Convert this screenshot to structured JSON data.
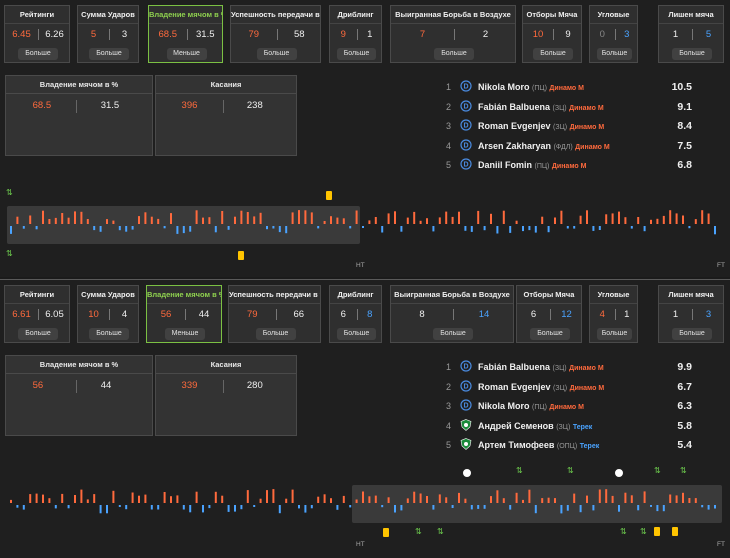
{
  "match1": {
    "stats": [
      {
        "title": "Рейтинги",
        "a": "6.45",
        "b": "6.26",
        "btn": "Больше",
        "ac": "orange",
        "bc": "white"
      },
      {
        "title": "Сумма Ударов",
        "a": "5",
        "b": "3",
        "btn": "Больше",
        "ac": "orange",
        "bc": "white"
      },
      {
        "title": "Владение мячом в %",
        "a": "68.5",
        "b": "31.5",
        "btn": "Меньше",
        "ac": "orange",
        "bc": "white",
        "active": true
      },
      {
        "title": "Успешность передачи в %",
        "a": "79",
        "b": "58",
        "btn": "Больше",
        "ac": "orange",
        "bc": "white"
      },
      {
        "title": "Дриблинг",
        "a": "9",
        "b": "1",
        "btn": "Больше",
        "ac": "orange",
        "bc": "white"
      },
      {
        "title": "Выигранная Борьба в Воздухе",
        "a": "7",
        "b": "2",
        "btn": "Больше",
        "ac": "orange",
        "bc": "white"
      },
      {
        "title": "Отборы Мяча",
        "a": "10",
        "b": "9",
        "btn": "Больше",
        "ac": "orange",
        "bc": "white"
      },
      {
        "title": "Угловые",
        "a": "0",
        "b": "3",
        "btn": "Больше",
        "ac": "gray",
        "bc": "blue"
      },
      {
        "title": "Лишен мяча",
        "a": "1",
        "b": "5",
        "btn": "Больше",
        "ac": "white",
        "bc": "blue"
      }
    ],
    "possession": {
      "title": "Владение мячом в %",
      "a": "68.5",
      "b": "31.5"
    },
    "touches": {
      "title": "Касания",
      "a": "396",
      "b": "238"
    },
    "players": [
      {
        "n": "1",
        "name": "Nikola Moro",
        "pos": "(ПЦ)",
        "team": "Динамо М",
        "rating": "10.5",
        "club": "dinamo"
      },
      {
        "n": "2",
        "name": "Fabián Balbuena",
        "pos": "(ЗЦ)",
        "team": "Динамо М",
        "rating": "9.1",
        "club": "dinamo"
      },
      {
        "n": "3",
        "name": "Roman Evgenjev",
        "pos": "(ЗЦ)",
        "team": "Динамо М",
        "rating": "8.4",
        "club": "dinamo"
      },
      {
        "n": "4",
        "name": "Arsen Zakharyan",
        "pos": "(ФДЛ)",
        "team": "Динамо М",
        "rating": "7.5",
        "club": "dinamo"
      },
      {
        "n": "5",
        "name": "Daniil Fomin",
        "pos": "(ПЦ)",
        "team": "Динамо М",
        "rating": "6.8",
        "club": "dinamo"
      }
    ],
    "timeline": {
      "ht": "HT",
      "ft": "FT"
    }
  },
  "match2": {
    "stats": [
      {
        "title": "Рейтинги",
        "a": "6.61",
        "b": "6.05",
        "btn": "Больше",
        "ac": "orange",
        "bc": "white"
      },
      {
        "title": "Сумма Ударов",
        "a": "10",
        "b": "4",
        "btn": "Больше",
        "ac": "orange",
        "bc": "white"
      },
      {
        "title": "Владение мячом в %",
        "a": "56",
        "b": "44",
        "btn": "Меньше",
        "ac": "orange",
        "bc": "white",
        "active": true
      },
      {
        "title": "Успешность передачи в %",
        "a": "79",
        "b": "66",
        "btn": "Больше",
        "ac": "orange",
        "bc": "white"
      },
      {
        "title": "Дриблинг",
        "a": "6",
        "b": "8",
        "btn": "Больше",
        "ac": "white",
        "bc": "blue"
      },
      {
        "title": "Выигранная Борьба в Воздухе",
        "a": "8",
        "b": "14",
        "btn": "Больше",
        "ac": "white",
        "bc": "blue"
      },
      {
        "title": "Отборы Мяча",
        "a": "6",
        "b": "12",
        "btn": "Больше",
        "ac": "white",
        "bc": "blue"
      },
      {
        "title": "Угловые",
        "a": "4",
        "b": "1",
        "btn": "Больше",
        "ac": "orange",
        "bc": "white"
      },
      {
        "title": "Лишен мяча",
        "a": "1",
        "b": "3",
        "btn": "Больше",
        "ac": "white",
        "bc": "blue"
      }
    ],
    "possession": {
      "title": "Владение мячом в %",
      "a": "56",
      "b": "44"
    },
    "touches": {
      "title": "Касания",
      "a": "339",
      "b": "280"
    },
    "players": [
      {
        "n": "1",
        "name": "Fabián Balbuena",
        "pos": "(ЗЦ)",
        "team": "Динамо М",
        "rating": "9.9",
        "club": "dinamo"
      },
      {
        "n": "2",
        "name": "Roman Evgenjev",
        "pos": "(ЗЦ)",
        "team": "Динамо М",
        "rating": "6.7",
        "club": "dinamo"
      },
      {
        "n": "3",
        "name": "Nikola Moro",
        "pos": "(ПЦ)",
        "team": "Динамо М",
        "rating": "6.3",
        "club": "dinamo"
      },
      {
        "n": "4",
        "name": "Андрей Семенов",
        "pos": "(ЗЦ)",
        "team": "Терек",
        "rating": "5.8",
        "club": "terek"
      },
      {
        "n": "5",
        "name": "Артем Тимофеев",
        "pos": "(ОПЦ)",
        "team": "Терек",
        "rating": "5.4",
        "club": "terek"
      }
    ],
    "timeline": {
      "ht": "HT",
      "ft": "FT"
    }
  },
  "colors": {
    "home": "#ff6a3d",
    "away": "#4aa3ff",
    "active": "#7bc043",
    "card": "#ffc400"
  }
}
